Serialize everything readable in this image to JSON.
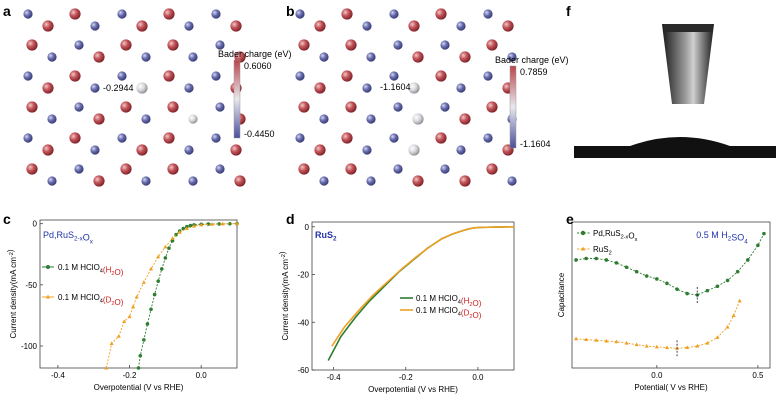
{
  "panels": {
    "a": {
      "letter": "a",
      "colorbar": {
        "title": "Bader charge (eV)",
        "max": "0.6060",
        "min": "-0.4450"
      },
      "annotation": "-0.2944"
    },
    "b": {
      "letter": "b",
      "colorbar": {
        "title": "Bader charge (eV)",
        "max": "0.7859",
        "min": "-1.1604"
      },
      "annotation": "-1.1604"
    },
    "f": {
      "letter": "f"
    }
  },
  "colors": {
    "atom_red": "#b8454a",
    "atom_blue": "#5b5f9e",
    "atom_white": "#d9d9de",
    "green": "#2e7d32",
    "orange": "#f0a020",
    "inset_label": "#2233aa",
    "legend_red": "#d01c1c"
  },
  "chart_data": [
    {
      "panel": "c",
      "letter": "c",
      "type": "line",
      "inset_label": "Pd,RuS",
      "inset_label_sub1": "2-x",
      "inset_label_mid": "O",
      "inset_label_sub2": "x",
      "xlabel": "Overpotential (V vs RHE)",
      "ylabel": "Current density(mA cm",
      "ylabel_sup": "-2",
      "ylabel_end": ")",
      "xlim": [
        -0.45,
        0.1
      ],
      "ylim": [
        -118,
        3
      ],
      "xticks": [
        -0.4,
        -0.2,
        0.0
      ],
      "xtick_labels": [
        "-0.4",
        "-0.2",
        "0.0"
      ],
      "yticks": [
        -100,
        -50,
        0
      ],
      "ytick_labels": [
        "-100",
        "-50",
        "0"
      ],
      "legend": [
        {
          "prefix": "0.1 M HClO",
          "sub": "4",
          "solvent": "(H",
          "sub2": "2",
          "end": "O)",
          "color": "green"
        },
        {
          "prefix": "0.1 M HClO",
          "sub": "4",
          "solvent": "(D",
          "sub2": "2",
          "end": "O)",
          "color": "orange"
        }
      ],
      "series": [
        {
          "color": "green",
          "marker": "dot",
          "x": [
            -0.175,
            -0.17,
            -0.16,
            -0.15,
            -0.14,
            -0.13,
            -0.12,
            -0.11,
            -0.1,
            -0.09,
            -0.08,
            -0.07,
            -0.06,
            -0.05,
            -0.04,
            -0.03,
            -0.02,
            0.0,
            0.02,
            0.05,
            0.08,
            0.1
          ],
          "y": [
            -118,
            -108,
            -95,
            -82,
            -70,
            -58,
            -47,
            -37,
            -28,
            -20,
            -14,
            -9,
            -6,
            -4,
            -2.5,
            -1.5,
            -1,
            -0.5,
            -0.3,
            -0.2,
            -0.1,
            0
          ]
        },
        {
          "color": "orange",
          "marker": "triangle",
          "x": [
            -0.265,
            -0.25,
            -0.23,
            -0.215,
            -0.2,
            -0.19,
            -0.18,
            -0.16,
            -0.14,
            -0.12,
            -0.1,
            -0.08,
            -0.06,
            -0.04,
            -0.02,
            0.0,
            0.03,
            0.06,
            0.1
          ],
          "y": [
            -118,
            -98,
            -92,
            -80,
            -76,
            -68,
            -60,
            -48,
            -37,
            -27,
            -19,
            -12,
            -7,
            -4,
            -2,
            -1,
            -0.5,
            -0.2,
            0
          ]
        }
      ]
    },
    {
      "panel": "d",
      "letter": "d",
      "type": "line",
      "inset_label": "RuS",
      "inset_label_sub1": "2",
      "xlabel": "Overpotential (V vs RHE)",
      "ylabel": "Current density(mA cm",
      "ylabel_sup": "-2",
      "ylabel_end": ")",
      "xlim": [
        -0.46,
        0.1
      ],
      "ylim": [
        -60,
        2
      ],
      "xticks": [
        -0.4,
        -0.2,
        0.0
      ],
      "xtick_labels": [
        "-0.4",
        "-0.2",
        "0.0"
      ],
      "yticks": [
        -60,
        -40,
        -20,
        0
      ],
      "ytick_labels": [
        "-60",
        "-40",
        "-20",
        "0"
      ],
      "legend": [
        {
          "prefix": "0.1 M HClO",
          "sub": "4",
          "solvent": "(H",
          "sub2": "2",
          "end": "O)",
          "color": "green"
        },
        {
          "prefix": "0.1 M HClO",
          "sub": "4",
          "solvent": "(D",
          "sub2": "2",
          "end": "O)",
          "color": "orange"
        }
      ],
      "series": [
        {
          "color": "green",
          "x": [
            -0.415,
            -0.38,
            -0.34,
            -0.3,
            -0.26,
            -0.22,
            -0.18,
            -0.14,
            -0.1,
            -0.07,
            -0.04,
            -0.02,
            0.0,
            0.05,
            0.1
          ],
          "y": [
            -56,
            -46,
            -38,
            -31,
            -25,
            -19,
            -14,
            -9,
            -5,
            -3,
            -1.5,
            -0.7,
            -0.3,
            -0.1,
            0
          ]
        },
        {
          "color": "orange",
          "x": [
            -0.405,
            -0.37,
            -0.33,
            -0.29,
            -0.25,
            -0.21,
            -0.17,
            -0.13,
            -0.1,
            -0.07,
            -0.04,
            -0.02,
            0.0,
            0.05,
            0.1
          ],
          "y": [
            -50,
            -42,
            -35,
            -28.5,
            -23,
            -17.5,
            -12.5,
            -8,
            -5,
            -3,
            -1.5,
            -0.7,
            -0.3,
            -0.1,
            0
          ]
        }
      ]
    },
    {
      "panel": "e",
      "letter": "e",
      "type": "scatter",
      "inset_label": "0.5 M H",
      "inset_label_sub1": "2",
      "inset_label_mid": "SO",
      "inset_label_sub2": "4",
      "xlabel": "Potential( V vs RHE)",
      "ylabel": "Capacitance",
      "xlim": [
        -0.42,
        0.56
      ],
      "ylim": [
        0,
        100
      ],
      "xticks": [
        0.0,
        0.5
      ],
      "xtick_labels": [
        "0.0",
        "0.5"
      ],
      "legend": [
        {
          "prefix": "Pd,RuS",
          "sub": "2-x",
          "mid": "O",
          "sub2": "x",
          "color": "green"
        },
        {
          "prefix": "RuS",
          "sub": "2",
          "color": "orange"
        }
      ],
      "series": [
        {
          "color": "green",
          "marker": "dot",
          "x": [
            -0.4,
            -0.35,
            -0.3,
            -0.25,
            -0.2,
            -0.15,
            -0.1,
            -0.05,
            0.0,
            0.05,
            0.1,
            0.15,
            0.2,
            0.25,
            0.3,
            0.35,
            0.4,
            0.45,
            0.5,
            0.53
          ],
          "y": [
            74,
            75,
            75,
            74,
            72,
            69,
            66,
            63,
            61,
            58,
            54,
            51,
            50,
            53,
            56,
            60,
            66,
            74,
            84,
            92
          ]
        },
        {
          "color": "orange",
          "marker": "triangle",
          "x": [
            -0.4,
            -0.35,
            -0.3,
            -0.25,
            -0.2,
            -0.15,
            -0.1,
            -0.05,
            0.0,
            0.05,
            0.1,
            0.15,
            0.2,
            0.25,
            0.3,
            0.35,
            0.38,
            0.41
          ],
          "y": [
            20,
            19.5,
            19,
            18.5,
            18,
            17,
            16,
            15,
            14.5,
            14,
            13.5,
            14,
            15,
            17,
            21,
            28,
            36,
            46
          ]
        }
      ],
      "markers_dashed": [
        {
          "x": 0.2,
          "y": 50,
          "color": "green"
        },
        {
          "x": 0.1,
          "y": 13.5,
          "color": "orange"
        }
      ]
    }
  ]
}
